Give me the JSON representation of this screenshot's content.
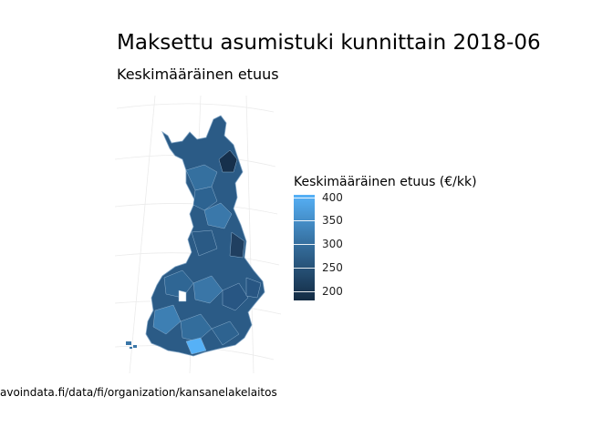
{
  "title": "Maksettu asumistuki kunnittain 2018-06",
  "subtitle": "Keskimääräinen etuus",
  "legend": {
    "title": "Keskimääräinen etuus (€/kk)",
    "min": 180,
    "max": 405,
    "colors": {
      "high": "#56b1f7",
      "low": "#132b43"
    },
    "ticks": [
      {
        "label": "400",
        "value": 400
      },
      {
        "label": "350",
        "value": 350
      },
      {
        "label": "300",
        "value": 300
      },
      {
        "label": "250",
        "value": 250
      },
      {
        "label": "200",
        "value": 200
      }
    ]
  },
  "caption": "avoindata.fi/data/fi/organization/kansanelakelaitos"
}
